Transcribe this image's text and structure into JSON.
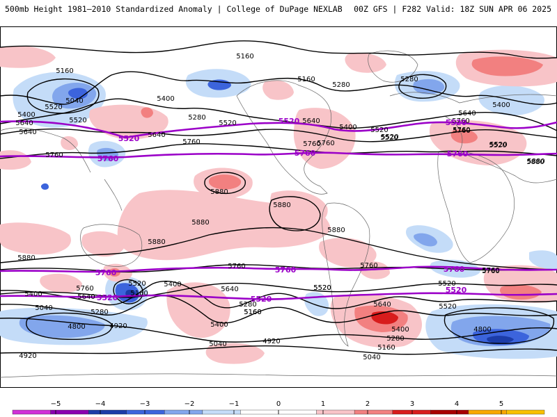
{
  "header": {
    "left_title": "500mb Height 1981–2010 Standardized Anomaly | College of DuPage NEXLAB",
    "right_title": "00Z GFS | F282 Valid: 18Z SUN APR 06 2025"
  },
  "map": {
    "projection": "global cylindrical",
    "highlight_color": "#9b00c8",
    "highlight_contours": [
      {
        "label": "5520"
      },
      {
        "label": "5760"
      }
    ],
    "contour_labels": [
      "5160",
      "5160",
      "5160",
      "5280",
      "5280",
      "5040",
      "5400",
      "5520",
      "5520",
      "5640",
      "5640",
      "5640",
      "5520",
      "5280",
      "5400",
      "5760",
      "5520",
      "5640",
      "5520",
      "5400",
      "5760",
      "5880",
      "5640",
      "5760",
      "5400",
      "5520",
      "5760",
      "5760",
      "5880",
      "5880",
      "5880",
      "5880",
      "5880",
      "5880",
      "5760",
      "5760",
      "5760",
      "5760",
      "5400",
      "5640",
      "5520",
      "5520",
      "5160",
      "5520",
      "5280",
      "5160",
      "5040",
      "4800",
      "4920",
      "5040",
      "4920",
      "4920",
      "5400",
      "5640",
      "5520",
      "5400",
      "5280",
      "5160",
      "5040",
      "4800",
      "5760",
      "5520",
      "5400",
      "5160",
      "5280",
      "5640",
      "5880",
      "5760",
      "5520",
      "5760",
      "5520"
    ],
    "highlight_labels": [
      "5520",
      "5520",
      "5520",
      "5760",
      "5760",
      "5760",
      "5760",
      "5760",
      "5760",
      "5520",
      "5520",
      "5520"
    ]
  },
  "legend": {
    "ticks": [
      "−5",
      "−4",
      "−3",
      "−2",
      "−1",
      "0",
      "1",
      "2",
      "3",
      "4",
      "5"
    ],
    "colors": [
      "#d030d8",
      "#8a00b0",
      "#1c3ca8",
      "#3c64dc",
      "#82a6ec",
      "#c4dcf8",
      "#ffffff",
      "#ffffff",
      "#f8c4c8",
      "#f28080",
      "#d81c1c",
      "#a80000",
      "#f8a800",
      "#f8c000"
    ]
  }
}
